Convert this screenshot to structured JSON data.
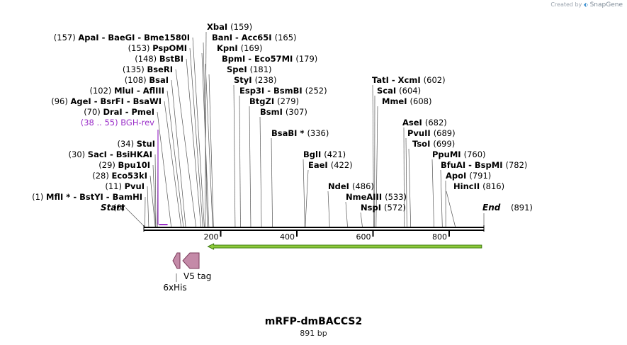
{
  "branding": {
    "created_by": "Created by",
    "product": "SnapGene",
    "icon": "snapgene-logo-icon"
  },
  "plasmid": {
    "name": "mRFP-dmBACCS2",
    "length_label": "891 bp",
    "length_bp": 891
  },
  "axis": {
    "ticks": [
      200,
      400,
      600,
      800
    ]
  },
  "colors": {
    "sites": "#000000",
    "primer": "#9b2fc9",
    "feature_fill": "#c48aa8",
    "feature_stroke": "#7a3a5a",
    "orf_fill": "#8ecb3a",
    "orf_stroke": "#3f7b12"
  },
  "start_label": "Start",
  "end_label": "End",
  "start_pos": 0,
  "end_pos": 891,
  "left_sites": [
    {
      "pos": "(157)",
      "bp": 157,
      "name": "ApaI",
      "extra": " -  BaeGI  -  Bme1580I"
    },
    {
      "pos": "(153)",
      "bp": 153,
      "name": "PspOMI",
      "extra": ""
    },
    {
      "pos": "(148)",
      "bp": 148,
      "name": "BstBI",
      "extra": ""
    },
    {
      "pos": "(135)",
      "bp": 135,
      "name": "BseRI",
      "extra": ""
    },
    {
      "pos": "(108)",
      "bp": 108,
      "name": "BsaI",
      "extra": ""
    },
    {
      "pos": "(102)",
      "bp": 102,
      "name": "MluI",
      "extra": " -  AflIII"
    },
    {
      "pos": "(96)",
      "bp": 96,
      "name": "AgeI",
      "extra": " -  BsrFI  -  BsaWI"
    },
    {
      "pos": "(70)",
      "bp": 70,
      "name": "DraI",
      "extra": " -  PmeI"
    },
    {
      "pos": "(34)",
      "bp": 34,
      "name": "StuI",
      "extra": ""
    },
    {
      "pos": "(30)",
      "bp": 30,
      "name": "SacI",
      "extra": " -  BsiHKAI"
    },
    {
      "pos": "(29)",
      "bp": 29,
      "name": "Bpu10I",
      "extra": ""
    },
    {
      "pos": "(28)",
      "bp": 28,
      "name": "Eco53kI",
      "extra": ""
    },
    {
      "pos": "(11)",
      "bp": 11,
      "name": "PvuI",
      "extra": ""
    },
    {
      "pos": "(1)",
      "bp": 1,
      "name": "MflI *",
      "extra": " -  BstYI  -  BamHI"
    }
  ],
  "right_sites": [
    {
      "name": "XbaI",
      "pos": "(159)",
      "bp": 159
    },
    {
      "name": "BanI  -  Acc65I",
      "pos": "(165)",
      "bp": 165
    },
    {
      "name": "KpnI",
      "pos": "(169)",
      "bp": 169
    },
    {
      "name": "BpmI  -  Eco57MI",
      "pos": "(179)",
      "bp": 179
    },
    {
      "name": "SpeI",
      "pos": "(181)",
      "bp": 181
    },
    {
      "name": "StyI",
      "pos": "(238)",
      "bp": 238
    },
    {
      "name": "Esp3I  -  BsmBI",
      "pos": "(252)",
      "bp": 252
    },
    {
      "name": "BtgZI",
      "pos": "(279)",
      "bp": 279
    },
    {
      "name": "BsmI",
      "pos": "(307)",
      "bp": 307
    },
    {
      "name": "BsaBI *",
      "pos": "(336)",
      "bp": 336
    },
    {
      "name": "BglI",
      "pos": "(421)",
      "bp": 421
    },
    {
      "name": "EaeI",
      "pos": "(422)",
      "bp": 422
    },
    {
      "name": "NdeI",
      "pos": "(486)",
      "bp": 486
    },
    {
      "name": "NmeAIII",
      "pos": "(533)",
      "bp": 533
    },
    {
      "name": "NspI",
      "pos": "(572)",
      "bp": 572
    },
    {
      "name": "TatI  -  XcmI",
      "pos": "(602)",
      "bp": 602
    },
    {
      "name": "ScaI",
      "pos": "(604)",
      "bp": 604
    },
    {
      "name": "MmeI",
      "pos": "(608)",
      "bp": 608
    },
    {
      "name": "AseI",
      "pos": "(682)",
      "bp": 682
    },
    {
      "name": "PvuII",
      "pos": "(689)",
      "bp": 689
    },
    {
      "name": "TsoI",
      "pos": "(699)",
      "bp": 699
    },
    {
      "name": "PpuMI",
      "pos": "(760)",
      "bp": 760
    },
    {
      "name": "BfuAI  -  BspMI",
      "pos": "(782)",
      "bp": 782
    },
    {
      "name": "ApoI",
      "pos": "(791)",
      "bp": 791
    },
    {
      "name": "HincII",
      "pos": "(816)",
      "bp": 816
    }
  ],
  "primer": {
    "range": "(38 .. 55)",
    "name": "BGH-rev",
    "start_bp": 38,
    "end_bp": 55
  },
  "features": [
    {
      "name": "6xHis",
      "start_bp": 73,
      "end_bp": 91,
      "direction": "reverse"
    },
    {
      "name": "V5 tag",
      "start_bp": 103,
      "end_bp": 145,
      "direction": "reverse"
    }
  ],
  "orf": {
    "start_bp": 176,
    "end_bp": 889,
    "direction": "reverse"
  }
}
